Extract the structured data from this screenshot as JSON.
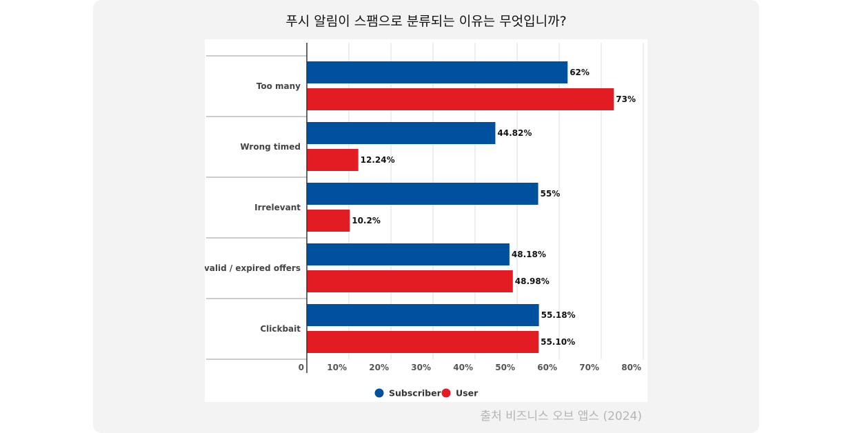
{
  "title": "푸시 알림이 스팸으로 분류되는 이유는 무엇입니까?",
  "source": "출처 비즈니스 오브 앱스 (2024)",
  "colors": {
    "subscriber": "#0050a0",
    "user": "#e31b23",
    "grid": "#dddddd",
    "axis": "#333333"
  },
  "chart_data": {
    "type": "bar",
    "orientation": "horizontal",
    "title": "푸시 알림이 스팸으로 분류되는 이유는 무엇입니까?",
    "categories": [
      "Too many",
      "Wrong timed",
      "Irrelevant",
      "Invalid / expired offers",
      "Clickbait"
    ],
    "series": [
      {
        "name": "Subscriber",
        "values": [
          62,
          44.82,
          55,
          48.18,
          55.18
        ],
        "labels": [
          "62%",
          "44.82%",
          "55%",
          "48.18%",
          "55.18%"
        ]
      },
      {
        "name": "User",
        "values": [
          73,
          12.24,
          10.2,
          48.98,
          55.1
        ],
        "labels": [
          "73%",
          "12.24%",
          "10.2%",
          "48.98%",
          "55.10%"
        ]
      }
    ],
    "xlim": [
      0,
      80
    ],
    "xticks": [
      0,
      10,
      20,
      30,
      40,
      50,
      60,
      70,
      80
    ],
    "xtick_labels": [
      "0",
      "10%",
      "20%",
      "30%",
      "40%",
      "50%",
      "60%",
      "70%",
      "80%"
    ],
    "legend": [
      "Subscriber",
      "User"
    ],
    "legend_position": "bottom",
    "grid": true
  }
}
